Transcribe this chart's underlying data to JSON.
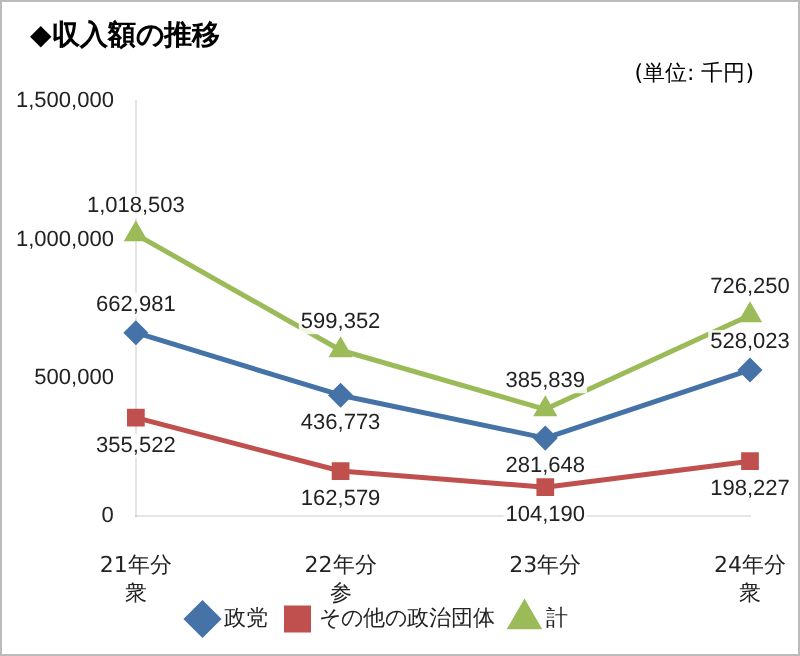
{
  "chart_data": {
    "type": "line",
    "title": "◆収入額の推移",
    "annotations": [
      "(単位: 千円)"
    ],
    "categories": [
      "21年分衆",
      "22年分参",
      "23年分",
      "24年分衆"
    ],
    "series": [
      {
        "name": "政党",
        "color": "#4572a7",
        "marker": "diamond",
        "values": [
          662981,
          436773,
          281648,
          528023
        ],
        "value_labels": [
          "662,981",
          "436,773",
          "281,648",
          "528,023"
        ]
      },
      {
        "name": "その他の政治団体",
        "color": "#c0504d",
        "marker": "square",
        "values": [
          355522,
          162579,
          104190,
          198227
        ],
        "value_labels": [
          "355,522",
          "162,579",
          "104,190",
          "198,227"
        ]
      },
      {
        "name": "計",
        "color": "#9bbb59",
        "marker": "triangle",
        "values": [
          1018503,
          599352,
          385839,
          726250
        ],
        "value_labels": [
          "1,018,503",
          "599,352",
          "385,839",
          "726,250"
        ]
      }
    ],
    "ylim": [
      0,
      1500000
    ],
    "yticks": [
      {
        "value": 0,
        "label": "0"
      },
      {
        "value": 500000,
        "label": "500,000"
      },
      {
        "value": 1000000,
        "label": "1,000,000"
      },
      {
        "value": 1500000,
        "label": "1,500,000"
      }
    ],
    "grid": false,
    "legend": "bottom"
  }
}
